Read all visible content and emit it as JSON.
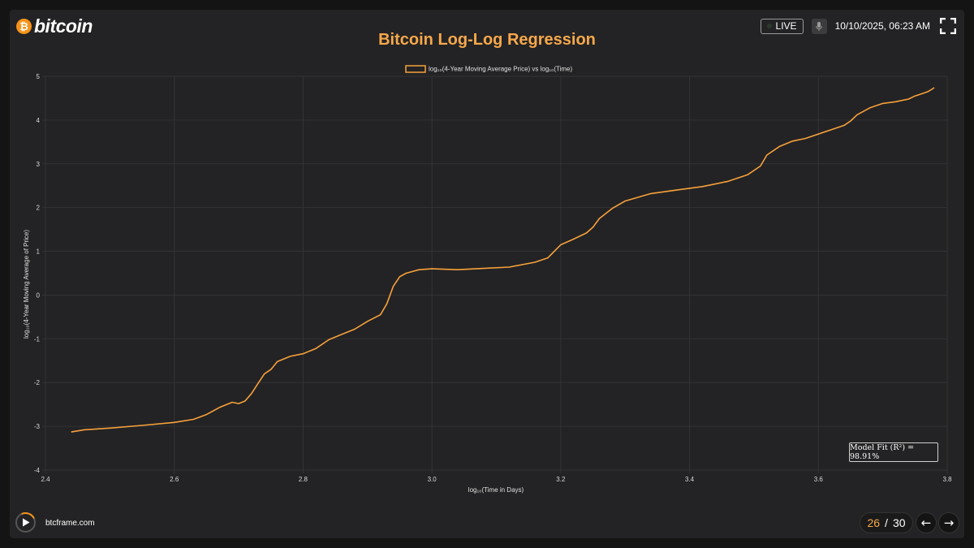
{
  "header": {
    "logo_symbol": "₿",
    "logo_text": "bitcoin",
    "title": "Bitcoin Log-Log Regression",
    "live_label": "LIVE",
    "datetime": "10/10/2025, 06:23 AM"
  },
  "icons": {
    "mic": "mic-icon",
    "fullscreen": "fullscreen-icon",
    "play": "play-icon",
    "prev": "arrow-left-icon",
    "next": "arrow-right-icon"
  },
  "chart_data": {
    "type": "line",
    "legend": "log₁₀(4-Year Moving Average Price) vs log₁₀(Time)",
    "xlabel": "log₁₀(Time in Days)",
    "ylabel": "log₁₀(4-Year Moving Average of Price)",
    "xlim": [
      2.4,
      3.8
    ],
    "ylim": [
      -4,
      5
    ],
    "x_ticks": [
      "2.4",
      "2.6",
      "2.8",
      "3.0",
      "3.2",
      "3.4",
      "3.6",
      "3.8"
    ],
    "y_ticks": [
      "-4",
      "-3",
      "-2",
      "-1",
      "0",
      "1",
      "2",
      "3",
      "4",
      "5"
    ],
    "grid": true,
    "legend_position": "top",
    "color": "#f7a13a",
    "series": [
      {
        "x": [
          2.44,
          2.46,
          2.5,
          2.55,
          2.6,
          2.63,
          2.65,
          2.67,
          2.69,
          2.7,
          2.71,
          2.72,
          2.73,
          2.74,
          2.75,
          2.76,
          2.78,
          2.8,
          2.82,
          2.84,
          2.86,
          2.88,
          2.9,
          2.92,
          2.93,
          2.94,
          2.95,
          2.96,
          2.98,
          3.0,
          3.04,
          3.08,
          3.12,
          3.16,
          3.18,
          3.19,
          3.2,
          3.22,
          3.24,
          3.25,
          3.26,
          3.28,
          3.3,
          3.34,
          3.38,
          3.42,
          3.46,
          3.49,
          3.51,
          3.52,
          3.54,
          3.56,
          3.58,
          3.6,
          3.62,
          3.64,
          3.65,
          3.66,
          3.68,
          3.7,
          3.72,
          3.74,
          3.75,
          3.76,
          3.77,
          3.78
        ],
        "y": [
          -3.13,
          -3.08,
          -3.04,
          -2.98,
          -2.91,
          -2.84,
          -2.73,
          -2.57,
          -2.45,
          -2.48,
          -2.42,
          -2.25,
          -2.02,
          -1.8,
          -1.7,
          -1.52,
          -1.4,
          -1.34,
          -1.22,
          -1.02,
          -0.9,
          -0.78,
          -0.6,
          -0.45,
          -0.2,
          0.2,
          0.42,
          0.5,
          0.58,
          0.6,
          0.58,
          0.61,
          0.64,
          0.75,
          0.85,
          1.0,
          1.15,
          1.28,
          1.42,
          1.55,
          1.75,
          1.98,
          2.15,
          2.32,
          2.4,
          2.48,
          2.6,
          2.75,
          2.95,
          3.2,
          3.4,
          3.52,
          3.58,
          3.68,
          3.78,
          3.88,
          3.98,
          4.12,
          4.28,
          4.38,
          4.42,
          4.48,
          4.55,
          4.6,
          4.65,
          4.74
        ]
      }
    ],
    "annotation": "Model Fit (R²) = 98.91%"
  },
  "footer": {
    "site": "btcframe.com",
    "page_current": "26",
    "page_sep": "/",
    "page_total": "30",
    "prev_label": "←",
    "next_label": "→"
  }
}
